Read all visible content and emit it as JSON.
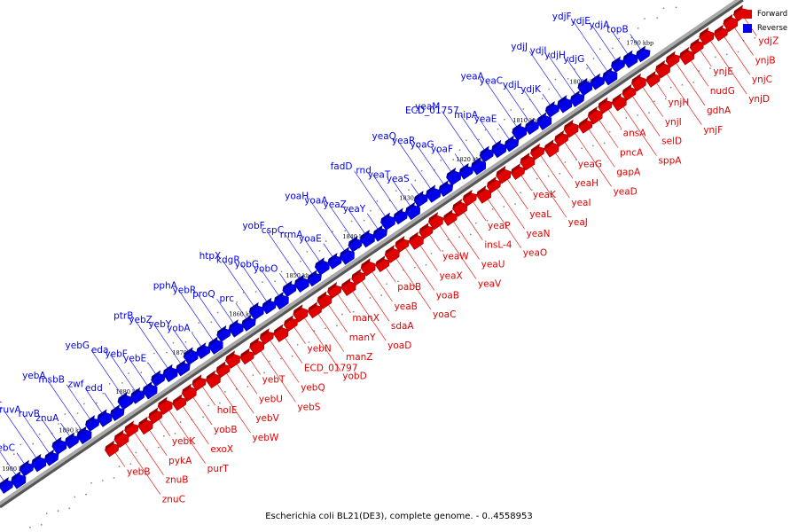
{
  "caption": "Escherichia coli BL21(DE3), complete genome. - 0..4558953",
  "legend": [
    {
      "label": "Forward",
      "color": "#e00000"
    },
    {
      "label": "Reverse",
      "color": "#0000ee"
    }
  ],
  "colors": {
    "forward": "#e00000",
    "reverse": "#0000ee",
    "axis": "#555555"
  },
  "kbp_labels": [
    "1790 kbp",
    "1800 kbp",
    "1810 kbp",
    "1820 kbp",
    "1830 kbp",
    "1840 kbp",
    "1850 kbp",
    "1860 kbp",
    "1870 kbp",
    "1880 kbp",
    "1890 kbp",
    "1900 kbp"
  ],
  "reverse_genes": [
    "topB",
    "ydjA",
    "ydjE",
    "ydjF",
    "ydjG",
    "ydjH",
    "ydjI",
    "ydjJ",
    "ydjK",
    "ydjL",
    "yeaC",
    "yeaA",
    "yeaE",
    "mipA",
    "ECD_01757",
    "yeaM",
    "yoaF",
    "yoaG",
    "yeaR",
    "yeaQ",
    "yeaS",
    "yeaT",
    "rnd",
    "fadD",
    "yeaY",
    "yeaZ",
    "yoaA",
    "yoaH",
    "yoaE",
    "rrmA",
    "cspC",
    "yobF",
    "yobO",
    "yobG",
    "kdgR",
    "htpX",
    "prc",
    "proQ",
    "yebR",
    "pphA",
    "yobA",
    "yebY",
    "yebZ",
    "ptrB",
    "yebE",
    "yebF",
    "eda",
    "yebG",
    "edd",
    "zwf",
    "msbB",
    "yebA",
    "znuA",
    "ruvB",
    "ruvA",
    "ruvC",
    "yebC",
    "ntpA",
    "aspS"
  ],
  "forward_genes": [
    "ydjZ",
    "ynjB",
    "ynjC",
    "ynjD",
    "ynjE",
    "nudG",
    "gdhA",
    "ynjF",
    "ynjH",
    "ynjI",
    "selD",
    "sppA",
    "ansA",
    "pncA",
    "gapA",
    "yeaD",
    "yeaG",
    "yeaH",
    "yeaI",
    "yeaJ",
    "yeaK",
    "yeaL",
    "yeaN",
    "yeaO",
    "yeaP",
    "insL-4",
    "yeaU",
    "yeaV",
    "yeaW",
    "yeaX",
    "yoaB",
    "yoaC",
    "pabB",
    "yeaB",
    "sdaA",
    "yoaD",
    "manX",
    "manY",
    "manZ",
    "yobD",
    "yebN",
    "ECD_01797",
    "yebQ",
    "yebS",
    "yebT",
    "yebU",
    "yebV",
    "yebW",
    "holE",
    "yobB",
    "exoX",
    "purT",
    "yebK",
    "pykA",
    "znuB",
    "znuC",
    "yebB"
  ]
}
